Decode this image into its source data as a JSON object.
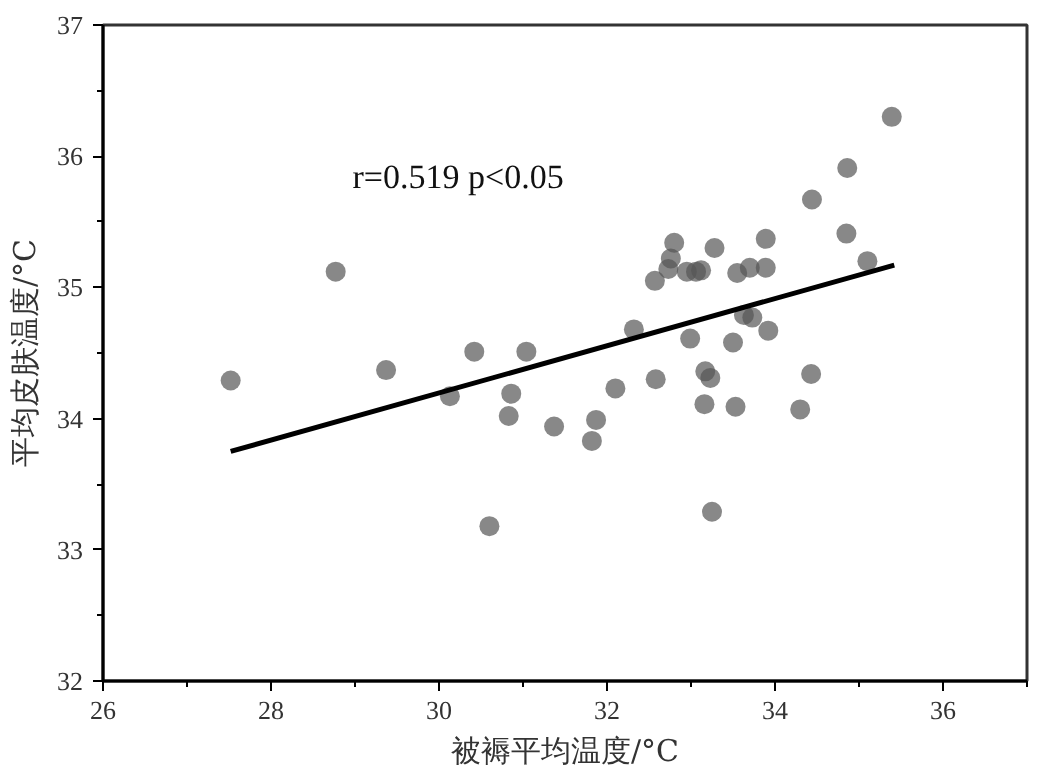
{
  "chart_data": {
    "type": "scatter",
    "xlabel": "被褥平均温度/°C",
    "ylabel": "平均皮肤温度/°C",
    "annotations": [
      "r=0.519  p<0.05"
    ],
    "xlim": [
      26,
      37
    ],
    "ylim": [
      32,
      37
    ],
    "xticks": [
      26,
      {
        "value": 27,
        "label": null
      },
      28,
      {
        "value": 29,
        "label": null
      },
      30,
      {
        "value": 31,
        "label": null
      },
      32,
      {
        "value": 33,
        "label": null
      },
      34,
      {
        "value": 35,
        "label": null
      },
      36,
      {
        "value": 37,
        "label": null
      }
    ],
    "yticks": [
      32,
      {
        "value": 32.5,
        "label": null
      },
      33,
      {
        "value": 33.5,
        "label": null
      },
      34,
      {
        "value": 34.5,
        "label": null
      },
      35,
      {
        "value": 35.5,
        "label": null
      },
      36,
      {
        "value": 36.5,
        "label": null
      },
      37
    ],
    "grid": false,
    "marker": "circle",
    "series": [
      {
        "color": "#555555",
        "x": [
          27.52,
          28.77,
          29.37,
          30.42,
          30.13,
          30.86,
          30.83,
          30.6,
          31.04,
          31.37,
          31.87,
          31.82,
          32.1,
          32.32,
          32.58,
          32.57,
          32.73,
          32.76,
          32.8,
          32.95,
          33.06,
          33.12,
          33.28,
          32.99,
          33.17,
          33.23,
          33.16,
          33.25,
          33.5,
          33.53,
          33.55,
          33.7,
          33.63,
          33.73,
          33.89,
          33.89,
          33.92,
          34.3,
          34.43,
          34.44,
          34.85,
          34.86,
          35.1,
          35.39
        ],
        "values": [
          34.29,
          35.12,
          34.37,
          34.51,
          34.17,
          34.19,
          34.02,
          33.18,
          34.51,
          33.94,
          33.99,
          33.83,
          34.23,
          34.68,
          34.3,
          35.05,
          35.14,
          35.22,
          35.34,
          35.12,
          35.12,
          35.13,
          35.3,
          34.61,
          34.36,
          34.31,
          34.11,
          33.29,
          34.58,
          34.09,
          35.11,
          35.15,
          34.79,
          34.77,
          35.15,
          35.37,
          34.67,
          34.07,
          34.34,
          35.67,
          35.41,
          35.91,
          35.2,
          36.3
        ]
      },
      {
        "type": "line",
        "color": "#000000",
        "line_style": "solid",
        "marker": "none",
        "x": [
          27.52,
          35.42
        ],
        "values": [
          33.75,
          35.17
        ]
      }
    ]
  }
}
